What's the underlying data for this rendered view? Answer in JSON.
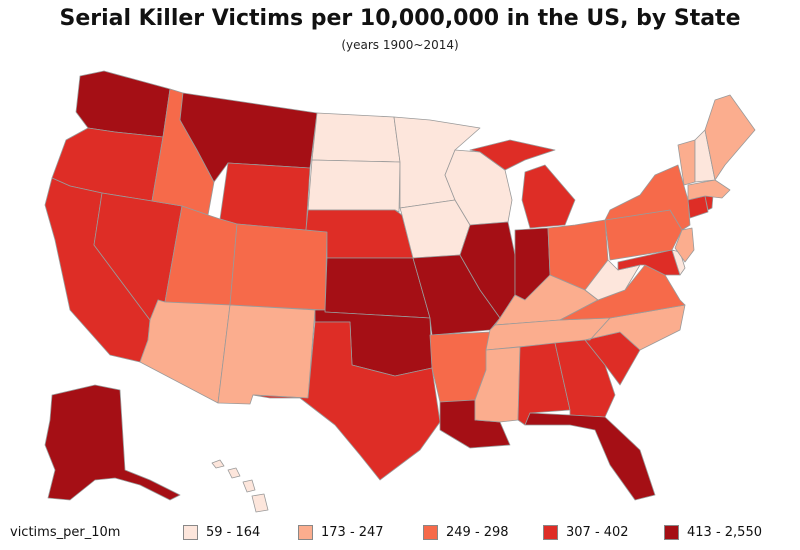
{
  "title": "Serial Killer Victims per 10,000,000 in the US, by State",
  "subtitle": "(years 1900~2014)",
  "legend": {
    "variable": "victims_per_10m",
    "classes": [
      {
        "label": "59 - 164",
        "color": "#fde6dc"
      },
      {
        "label": "173 - 247",
        "color": "#fbad8e"
      },
      {
        "label": "249 - 298",
        "color": "#f66a4a"
      },
      {
        "label": "307 - 402",
        "color": "#de2d26"
      },
      {
        "label": "413 - 2,550",
        "color": "#a50f15"
      }
    ]
  },
  "map_data": {
    "type": "choropleth",
    "region": "United States",
    "state_classes": {
      "WA": 4,
      "OR": 3,
      "CA": 3,
      "NV": 3,
      "ID": 2,
      "MT": 4,
      "WY": 3,
      "UT": 2,
      "CO": 2,
      "AZ": 1,
      "NM": 1,
      "ND": 0,
      "SD": 0,
      "NE": 3,
      "KS": 4,
      "OK": 4,
      "TX": 3,
      "MN": 0,
      "IA": 0,
      "MO": 4,
      "AR": 2,
      "LA": 4,
      "WI": 0,
      "IL": 4,
      "MI": 3,
      "IN": 4,
      "OH": 2,
      "KY": 1,
      "TN": 1,
      "MS": 1,
      "AL": 3,
      "GA": 3,
      "FL": 4,
      "SC": 3,
      "NC": 1,
      "VA": 2,
      "WV": 0,
      "PA": 2,
      "NY": 2,
      "NJ": 1,
      "DE": 0,
      "MD": 3,
      "CT": 3,
      "RI": 3,
      "MA": 1,
      "VT": 1,
      "NH": 0,
      "ME": 1,
      "AK": 4,
      "HI": 0
    }
  }
}
